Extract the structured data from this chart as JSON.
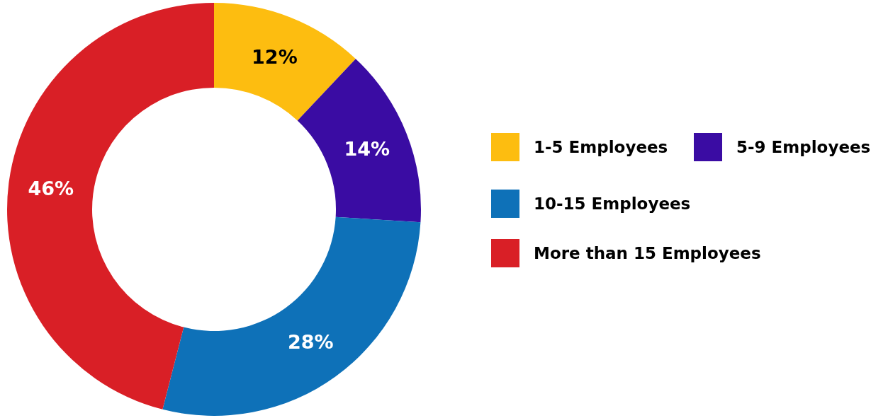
{
  "chart_data": {
    "type": "donut",
    "categories": [
      "1-5 Employees",
      "5-9 Employees",
      "10-15 Employees",
      "More than 15 Employees"
    ],
    "values": [
      12,
      14,
      28,
      46
    ],
    "colors": [
      "#fdbd10",
      "#3a0ca3",
      "#0e71b8",
      "#d91f26"
    ],
    "value_labels": [
      "12%",
      "14%",
      "28%",
      "46%"
    ],
    "legend": "right"
  }
}
